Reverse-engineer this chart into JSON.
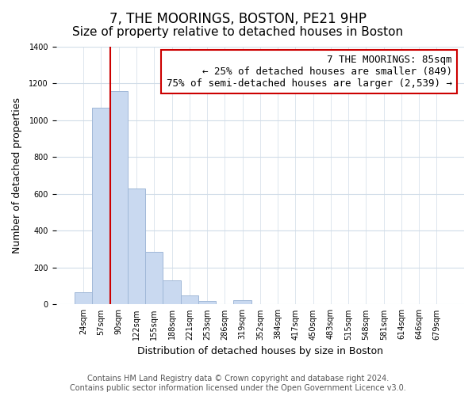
{
  "title": "7, THE MOORINGS, BOSTON, PE21 9HP",
  "subtitle": "Size of property relative to detached houses in Boston",
  "xlabel": "Distribution of detached houses by size in Boston",
  "ylabel": "Number of detached properties",
  "bin_labels": [
    "24sqm",
    "57sqm",
    "90sqm",
    "122sqm",
    "155sqm",
    "188sqm",
    "221sqm",
    "253sqm",
    "286sqm",
    "319sqm",
    "352sqm",
    "384sqm",
    "417sqm",
    "450sqm",
    "483sqm",
    "515sqm",
    "548sqm",
    "581sqm",
    "614sqm",
    "646sqm",
    "679sqm"
  ],
  "bar_values": [
    65,
    1070,
    1160,
    630,
    285,
    130,
    48,
    20,
    0,
    22,
    0,
    0,
    0,
    0,
    0,
    0,
    0,
    0,
    0,
    0,
    0
  ],
  "bar_color": "#c9d9f0",
  "bar_edge_color": "#a0b8d8",
  "vline_color": "#cc0000",
  "vline_pos": 1.5,
  "annotation_text_line1": "7 THE MOORINGS: 85sqm",
  "annotation_text_line2": "← 25% of detached houses are smaller (849)",
  "annotation_text_line3": "75% of semi-detached houses are larger (2,539) →",
  "annotation_box_color": "#ffffff",
  "annotation_border_color": "#cc0000",
  "ylim": [
    0,
    1400
  ],
  "yticks": [
    0,
    200,
    400,
    600,
    800,
    1000,
    1200,
    1400
  ],
  "footer_line1": "Contains HM Land Registry data © Crown copyright and database right 2024.",
  "footer_line2": "Contains public sector information licensed under the Open Government Licence v3.0.",
  "bg_color": "#ffffff",
  "grid_color": "#d0dce8",
  "title_fontsize": 12,
  "subtitle_fontsize": 11,
  "axis_label_fontsize": 9,
  "tick_fontsize": 7,
  "annotation_fontsize": 9,
  "footer_fontsize": 7
}
